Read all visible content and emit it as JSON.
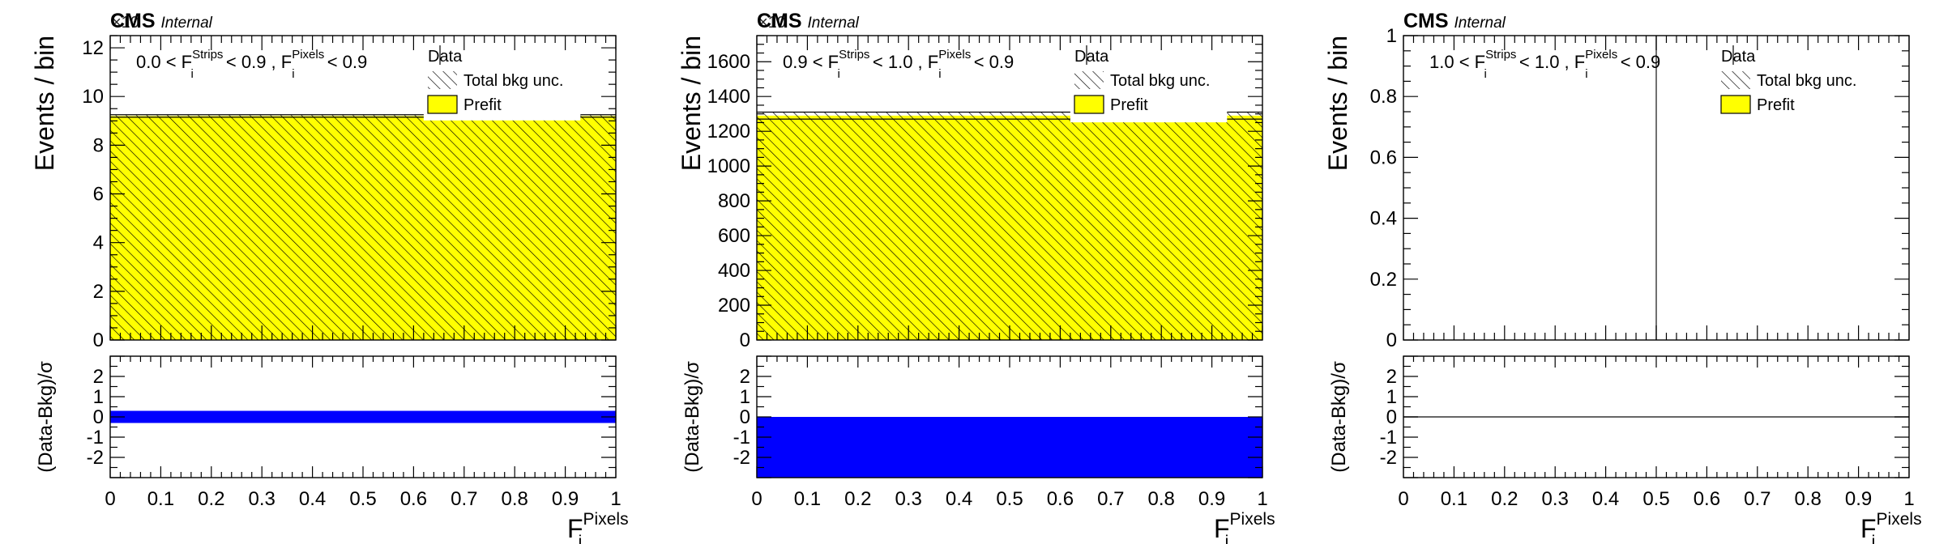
{
  "figure": {
    "colors": {
      "prefit_fill": "#ffff00",
      "prefit_hatch": "#000000",
      "pull_fill": "#0000ff",
      "axis": "#000000",
      "background": "#ffffff"
    }
  },
  "chart_data": [
    {
      "type": "bar",
      "experiment": "CMS",
      "status": "Internal",
      "region_label": {
        "lo": "0.0 < F",
        "strip_sup": "Strips",
        "sub": "i",
        "mid": " < 0.9 , F",
        "pix_sup": "Pixels",
        "sub2": "i",
        "hi": " < 0.9"
      },
      "exponent_label": "×10",
      "ylabel": "Events / bin",
      "ylim": [
        0,
        12.5
      ],
      "yticks": [
        0,
        2,
        4,
        6,
        8,
        10,
        12
      ],
      "bins": [
        {
          "x": [
            0,
            1
          ],
          "prefit": 9.2,
          "unc_band": [
            9.15,
            9.25
          ],
          "label_gap": [
            0.62,
            0.93
          ]
        }
      ],
      "legend": {
        "data": "Data",
        "unc": "Total bkg unc.",
        "prefit": "Prefit"
      },
      "ratio": {
        "ylabel": "(Data-Bkg)/σ",
        "ylim": [
          -3,
          3
        ],
        "yticks": [
          -2,
          -1,
          0,
          1,
          2
        ],
        "pull": [
          -0.3,
          0.3
        ]
      },
      "xlabel": {
        "base": "F",
        "sup": "Pixels",
        "sub": "i"
      },
      "xlim": [
        0,
        1
      ],
      "xticks": [
        "0",
        "0.1",
        "0.2",
        "0.3",
        "0.4",
        "0.5",
        "0.6",
        "0.7",
        "0.8",
        "0.9",
        "1"
      ]
    },
    {
      "type": "bar",
      "experiment": "CMS",
      "status": "Internal",
      "region_label": {
        "lo": "0.9 < F",
        "strip_sup": "Strips",
        "sub": "i",
        "mid": " < 1.0 , F",
        "pix_sup": "Pixels",
        "sub2": "i",
        "hi": " < 0.9"
      },
      "exponent_label": "×10",
      "ylabel": "Events / bin",
      "ylim": [
        0,
        1750
      ],
      "yticks": [
        0,
        200,
        400,
        600,
        800,
        1000,
        1200,
        1400,
        1600
      ],
      "bins": [
        {
          "x": [
            0,
            1
          ],
          "prefit": 1290,
          "unc_band": [
            1270,
            1310
          ],
          "label_gap": [
            0.62,
            0.93
          ]
        }
      ],
      "legend": {
        "data": "Data",
        "unc": "Total bkg unc.",
        "prefit": "Prefit"
      },
      "ratio": {
        "ylabel": "(Data-Bkg)/σ",
        "ylim": [
          -3,
          3
        ],
        "yticks": [
          -2,
          -1,
          0,
          1,
          2
        ],
        "pull": [
          -3,
          0
        ]
      },
      "xlabel": {
        "base": "F",
        "sup": "Pixels",
        "sub": "i"
      },
      "xlim": [
        0,
        1
      ],
      "xticks": [
        "0",
        "0.1",
        "0.2",
        "0.3",
        "0.4",
        "0.5",
        "0.6",
        "0.7",
        "0.8",
        "0.9",
        "1"
      ]
    },
    {
      "type": "bar",
      "experiment": "CMS",
      "status": "Internal",
      "region_label": {
        "lo": "1.0 < F",
        "strip_sup": "Strips",
        "sub": "i",
        "mid": " < 1.0 , F",
        "pix_sup": "Pixels",
        "sub2": "i",
        "hi": " < 0.9"
      },
      "exponent_label": "",
      "ylabel": "Events / bin",
      "ylim": [
        0,
        1
      ],
      "yticks": [
        0,
        0.2,
        0.4,
        0.6,
        0.8,
        1
      ],
      "bins": [],
      "vline_x": 0.5,
      "legend": {
        "data": "Data",
        "unc": "Total bkg unc.",
        "prefit": "Prefit"
      },
      "ratio": {
        "ylabel": "(Data-Bkg)/σ",
        "ylim": [
          -3,
          3
        ],
        "yticks": [
          -2,
          -1,
          0,
          1,
          2
        ],
        "pull": null,
        "zero_line": true
      },
      "xlabel": {
        "base": "F",
        "sup": "Pixels",
        "sub": "i"
      },
      "xlim": [
        0,
        1
      ],
      "xticks": [
        "0",
        "0.1",
        "0.2",
        "0.3",
        "0.4",
        "0.5",
        "0.6",
        "0.7",
        "0.8",
        "0.9",
        "1"
      ]
    }
  ]
}
